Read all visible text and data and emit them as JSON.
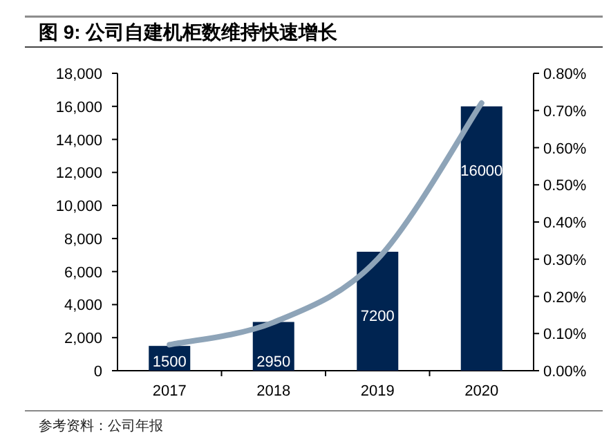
{
  "chart_data": {
    "type": "bar",
    "title": "图 9:  公司自建机柜数维持快速增长",
    "categories": [
      "2017",
      "2018",
      "2019",
      "2020"
    ],
    "series": [
      {
        "color": "#002451",
        "values": [
          1500,
          2950,
          7200,
          16000
        ],
        "value_labels": [
          "1500",
          "2950",
          "7200",
          "16000"
        ]
      },
      {
        "type": "line",
        "axis": "y2",
        "color": "#8ea4b8",
        "values": [
          0.07,
          0.13,
          0.3,
          0.72
        ]
      }
    ],
    "ylim": [
      0,
      18000
    ],
    "yticks": [
      {
        "value": 0,
        "label": "0"
      },
      {
        "value": 2000,
        "label": "2,000"
      },
      {
        "value": 4000,
        "label": "4,000"
      },
      {
        "value": 6000,
        "label": "6,000"
      },
      {
        "value": 8000,
        "label": "8,000"
      },
      {
        "value": 10000,
        "label": "10,000"
      },
      {
        "value": 12000,
        "label": "12,000"
      },
      {
        "value": 14000,
        "label": "14,000"
      },
      {
        "value": 16000,
        "label": "16,000"
      },
      {
        "value": 18000,
        "label": "18,000"
      }
    ],
    "y2lim": [
      0,
      0.8
    ],
    "y2ticks": [
      {
        "value": 0,
        "label": "0.00%"
      },
      {
        "value": 0.1,
        "label": "0.10%"
      },
      {
        "value": 0.2,
        "label": "0.20%"
      },
      {
        "value": 0.3,
        "label": "0.30%"
      },
      {
        "value": 0.4,
        "label": "0.40%"
      },
      {
        "value": 0.5,
        "label": "0.50%"
      },
      {
        "value": 0.6,
        "label": "0.60%"
      },
      {
        "value": 0.7,
        "label": "0.70%"
      },
      {
        "value": 0.8,
        "label": "0.80%"
      }
    ],
    "annotations": [
      "参考资料：公司年报"
    ]
  }
}
